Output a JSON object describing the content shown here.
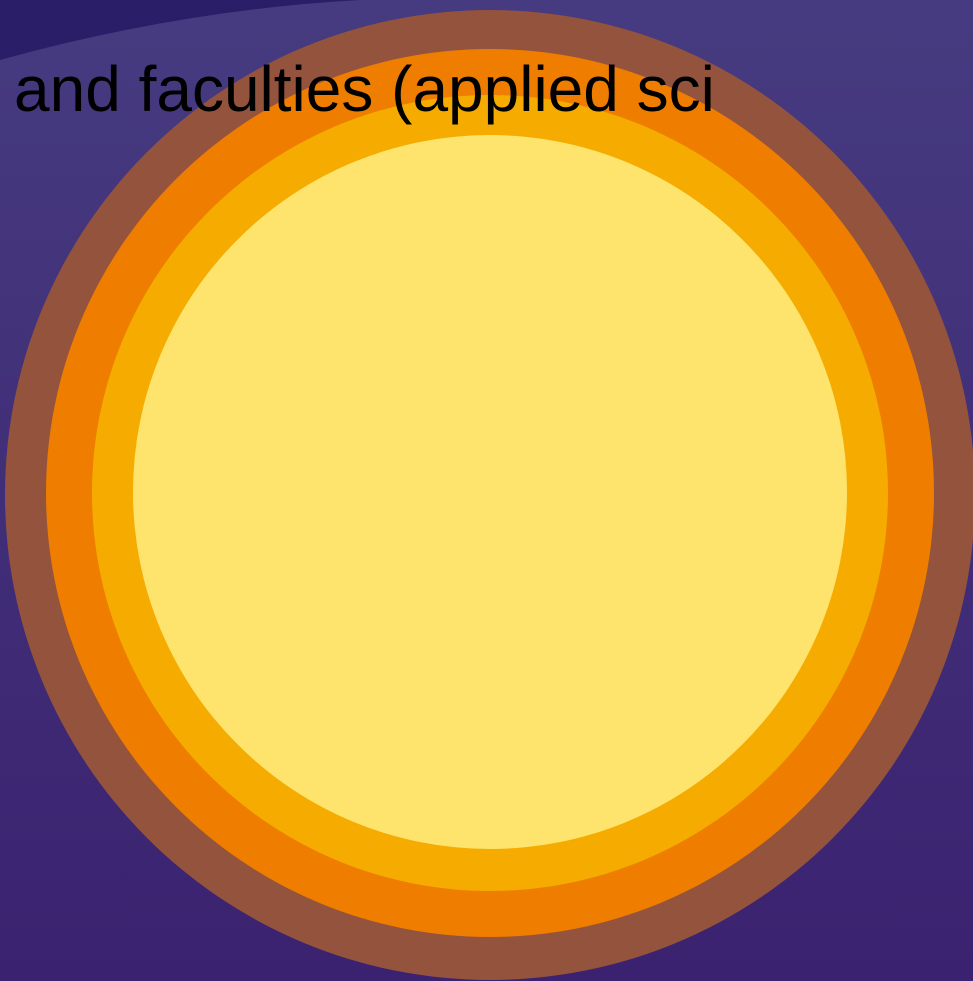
{
  "slide": {
    "text": "and faculties (applied sci"
  }
}
